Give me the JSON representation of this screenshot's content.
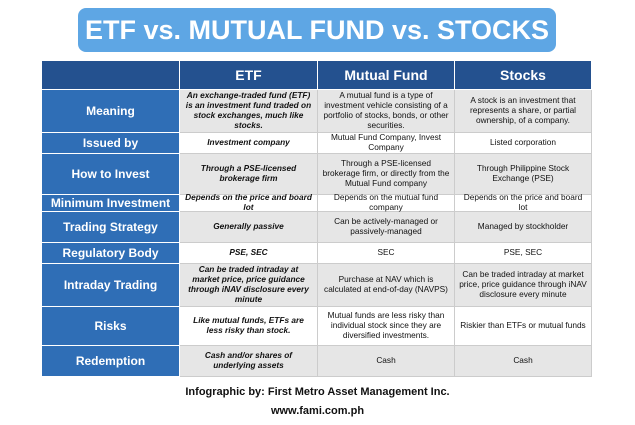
{
  "title": "ETF vs. MUTUAL FUND vs. STOCKS",
  "table": {
    "header": [
      "ETF",
      "Mutual Fund",
      "Stocks"
    ],
    "rows": [
      [
        "Meaning",
        "An exchange-traded fund (ETF) is an investment fund traded on stock exchanges, much like stocks.",
        "A mutual fund is a type of investment vehicle consisting of a portfolio of stocks, bonds, or other securities.",
        "A stock is an investment that represents a share, or partial ownership, of a company."
      ],
      [
        "Issued by",
        "Investment company",
        "Mutual Fund Company, Invest Company",
        "Listed corporation"
      ],
      [
        "How to Invest",
        "Through a PSE-licensed brokerage firm",
        "Through a PSE-licensed brokerage firm, or directly from the Mutual Fund company",
        "Through Philippine Stock Exchange (PSE)"
      ],
      [
        "Minimum Investment",
        "Depends on the price and board lot",
        "Depends on the mutual fund company",
        "Depends on the price and board lot"
      ],
      [
        "Trading Strategy",
        "Generally passive",
        "Can be actively-managed or passively-managed",
        "Managed by stockholder"
      ],
      [
        "Regulatory Body",
        "PSE, SEC",
        "SEC",
        "PSE, SEC"
      ],
      [
        "Intraday Trading",
        "Can be traded intraday at market price, price guidance through iNAV disclosure every minute",
        "Purchase at NAV which is calculated at end-of-day (NAVPS)",
        "Can be traded intraday at market price, price guidance through iNAV disclosure every minute"
      ],
      [
        "Risks",
        "Like mutual funds, ETFs are less risky than stock.",
        "Mutual funds are less risky than individual stock since they are diversified investments.",
        "Riskier than ETFs or mutual funds"
      ],
      [
        "Redemption",
        "Cash and/or shares of underlying assets",
        "Cash",
        "Cash"
      ]
    ]
  },
  "footer": {
    "credit": "Infographic by: First Metro Asset Management Inc.",
    "url": "www.fami.com.ph"
  }
}
